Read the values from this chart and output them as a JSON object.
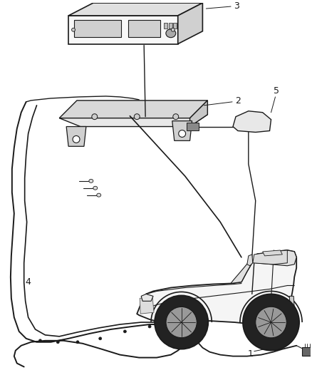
{
  "bg": "#ffffff",
  "lc": "#1a1a1a",
  "fig_w": 4.38,
  "fig_h": 5.33,
  "dpi": 100,
  "label_fs": 9
}
